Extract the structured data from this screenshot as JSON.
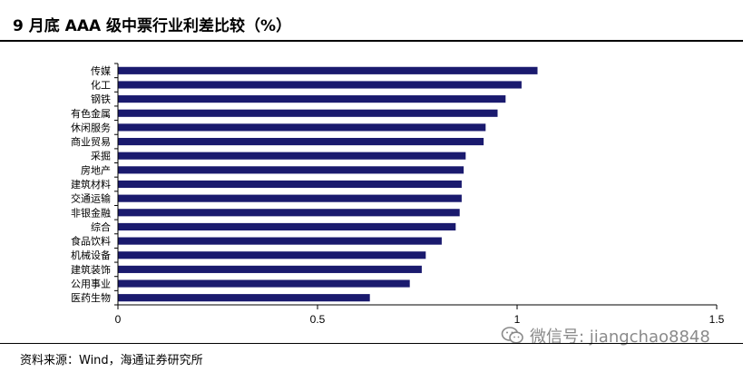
{
  "header": {
    "title": "9 月底  AAA 级中票行业利差比较（%）"
  },
  "footer": {
    "source": "资料来源：Wind，海通证券研究所"
  },
  "watermark": {
    "text": "微信号: jiangchao8848",
    "icon": "wechat-icon"
  },
  "colors": {
    "bar": "#1a1a6e",
    "rule": "#000000",
    "watermark": "#8a8a8a"
  },
  "chart_data": {
    "type": "bar",
    "orientation": "horizontal",
    "title": "9 月底  AAA 级中票行业利差比较（%）",
    "xlabel": "",
    "ylabel": "",
    "xlim": [
      0,
      1.5
    ],
    "x_ticks": [
      "0",
      "0.5",
      "1",
      "1.5"
    ],
    "grid": false,
    "legend": "none",
    "categories": [
      "传媒",
      "化工",
      "钢铁",
      "有色金属",
      "休闲服务",
      "商业贸易",
      "采掘",
      "房地产",
      "建筑材料",
      "交通运输",
      "非银金融",
      "综合",
      "食品饮料",
      "机械设备",
      "建筑装饰",
      "公用事业",
      "医药生物"
    ],
    "values": [
      1.05,
      1.01,
      0.97,
      0.95,
      0.92,
      0.915,
      0.87,
      0.865,
      0.86,
      0.86,
      0.855,
      0.845,
      0.81,
      0.77,
      0.76,
      0.73,
      0.63
    ]
  }
}
